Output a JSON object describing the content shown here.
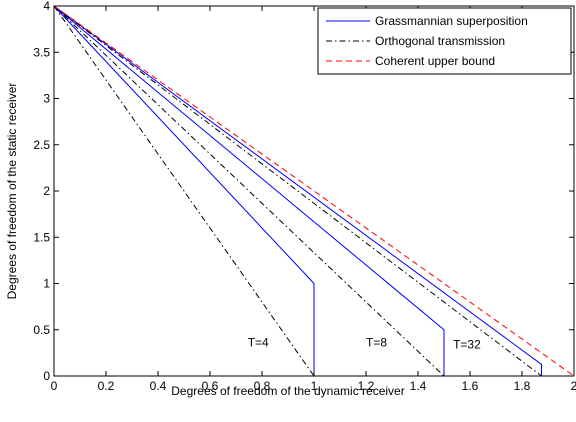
{
  "chart_data": {
    "type": "line",
    "xlabel": "Degrees of freedom of the dynamic receiver",
    "ylabel": "Degrees of freedom of the static receiver",
    "xlim": [
      0,
      2
    ],
    "ylim": [
      0,
      4
    ],
    "xticks": [
      "0",
      "0.2",
      "0.4",
      "0.6",
      "0.8",
      "1",
      "1.2",
      "1.4",
      "1.6",
      "1.8",
      "2"
    ],
    "yticks": [
      "0",
      "0.5",
      "1",
      "1.5",
      "2",
      "2.5",
      "3",
      "3.5",
      "4"
    ],
    "grid": false,
    "legend_position": "top-right",
    "series": [
      {
        "name": "Grassmannian superposition",
        "style": "solid",
        "color": "#0000ff",
        "segments": [
          {
            "x": [
              0,
              1,
              1
            ],
            "y": [
              4,
              1,
              0
            ]
          },
          {
            "x": [
              0,
              1.5,
              1.5
            ],
            "y": [
              4,
              0.5,
              0
            ]
          },
          {
            "x": [
              0,
              1.875,
              1.875
            ],
            "y": [
              4,
              0.125,
              0
            ]
          }
        ]
      },
      {
        "name": "Orthogonal transmission",
        "style": "dashdot",
        "color": "#000000",
        "segments": [
          {
            "x": [
              0,
              1
            ],
            "y": [
              4,
              0
            ]
          },
          {
            "x": [
              0,
              1.5
            ],
            "y": [
              4,
              0
            ]
          },
          {
            "x": [
              0,
              1.875
            ],
            "y": [
              4,
              0
            ]
          }
        ]
      },
      {
        "name": "Coherent upper bound",
        "style": "dashed",
        "color": "#ff0000",
        "segments": [
          {
            "x": [
              0,
              2
            ],
            "y": [
              4,
              0
            ]
          }
        ]
      }
    ],
    "annotations": [
      {
        "text": "T=4",
        "x": 0.745,
        "y": 0.32
      },
      {
        "text": "T=8",
        "x": 1.2,
        "y": 0.32
      },
      {
        "text": "T=32",
        "x": 1.535,
        "y": 0.3
      }
    ]
  }
}
